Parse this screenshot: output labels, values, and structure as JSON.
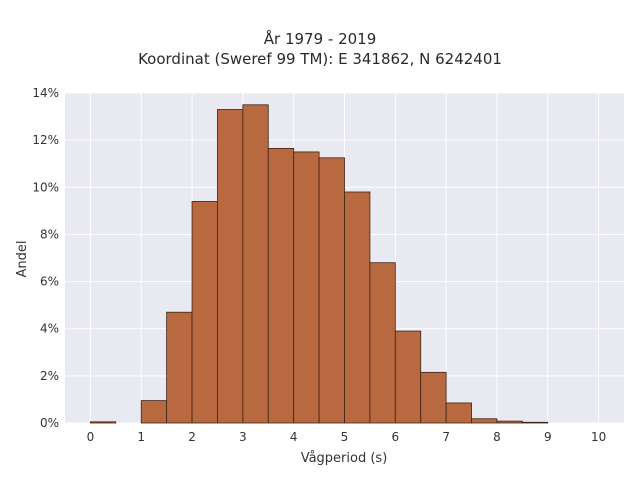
{
  "chart_data": {
    "type": "bar",
    "title": "År 1979 - 2019",
    "subtitle": "Koordinat (Sweref 99 TM): E 341862, N 6242401",
    "xlabel": "Vågperiod (s)",
    "ylabel": "Andel",
    "xlim": [
      -0.5,
      10.5
    ],
    "ylim": [
      0,
      14
    ],
    "x_ticks": [
      "0",
      "1",
      "2",
      "3",
      "4",
      "5",
      "6",
      "7",
      "8",
      "9",
      "10"
    ],
    "y_ticks": [
      "0%",
      "2%",
      "4%",
      "6%",
      "8%",
      "10%",
      "12%",
      "14%"
    ],
    "bin_width": 0.5,
    "bin_starts": [
      0,
      0.5,
      1,
      1.5,
      2,
      2.5,
      3,
      3.5,
      4,
      4.5,
      5,
      5.5,
      6,
      6.5,
      7,
      7.5,
      8,
      8.5,
      9,
      9.5
    ],
    "values": [
      0.05,
      0.0,
      0.95,
      4.7,
      9.4,
      13.3,
      13.5,
      11.65,
      11.5,
      11.25,
      9.8,
      6.8,
      3.9,
      2.15,
      0.85,
      0.18,
      0.08,
      0.03,
      0.0,
      0.0
    ],
    "grid": true,
    "colors": {
      "bar_fill": "#b8693f",
      "bar_stroke": "#3d2416",
      "plot_bg": "#e8e9f1",
      "grid": "#ffffff"
    }
  }
}
